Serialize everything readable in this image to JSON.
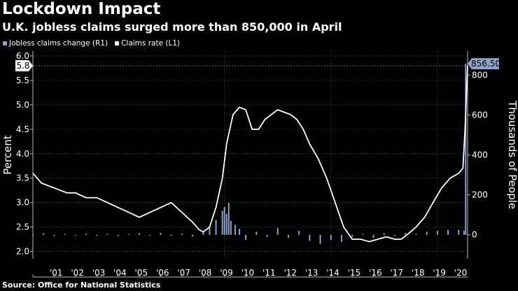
{
  "header": {
    "title": "Lockdown Impact",
    "subtitle": "U.K. jobless claims surged more than 850,000 in April"
  },
  "source": "Source: Office for National Statistics",
  "colors": {
    "rate_line": "#ffffff",
    "change_bars": "#8ea2c9",
    "background": "#000000",
    "grid": "#555555",
    "last_label_bg": "#8ea2c9"
  },
  "chart_data": {
    "type": "line+bar",
    "legend": [
      {
        "name": "Jobless claims change (R1)",
        "color": "#8ea2c9"
      },
      {
        "name": "Claims rate (L1)",
        "color": "#ffffff"
      }
    ],
    "x_range": [
      2000.0,
      2020.42
    ],
    "x_ticks": [
      "'01",
      "'02",
      "'03",
      "'04",
      "'05",
      "'06",
      "'07",
      "'08",
      "'09",
      "'10",
      "'11",
      "'12",
      "'13",
      "'14",
      "'15",
      "'16",
      "'17",
      "'18",
      "'19",
      "'20"
    ],
    "left_axis": {
      "label": "Percent",
      "ylim": [
        1.85,
        6.1
      ],
      "ticks": [
        "2.0",
        "2.5",
        "3.0",
        "3.5",
        "4.0",
        "4.5",
        "5.0",
        "5.5",
        "6.0"
      ],
      "last_value_label": "5.8"
    },
    "right_axis": {
      "label": "Thousands of People",
      "ylim": [
        -120,
        920
      ],
      "ticks": [
        "0",
        "200",
        "400",
        "600",
        "800"
      ],
      "last_value_label": "856.50"
    },
    "series": [
      {
        "name": "Claims rate (L1)",
        "axis": "left",
        "type": "line",
        "x": [
          2000.0,
          2000.2,
          2000.4,
          2001.0,
          2001.6,
          2002.0,
          2002.5,
          2003.0,
          2003.5,
          2004.0,
          2004.5,
          2005.0,
          2005.5,
          2006.0,
          2006.5,
          2007.0,
          2007.5,
          2007.8,
          2008.0,
          2008.3,
          2008.6,
          2008.9,
          2009.1,
          2009.4,
          2009.7,
          2010.0,
          2010.3,
          2010.6,
          2010.9,
          2011.2,
          2011.5,
          2011.8,
          2012.1,
          2012.4,
          2012.7,
          2013.0,
          2013.4,
          2013.8,
          2014.2,
          2014.6,
          2015.0,
          2015.4,
          2015.8,
          2016.2,
          2016.6,
          2017.0,
          2017.3,
          2017.6,
          2018.0,
          2018.4,
          2018.8,
          2019.2,
          2019.6,
          2020.0,
          2020.2,
          2020.3,
          2020.42
        ],
        "values": [
          3.6,
          3.5,
          3.4,
          3.3,
          3.2,
          3.2,
          3.1,
          3.1,
          3.0,
          2.9,
          2.8,
          2.7,
          2.8,
          2.9,
          3.0,
          2.8,
          2.6,
          2.45,
          2.4,
          2.5,
          2.9,
          3.5,
          4.2,
          4.8,
          4.95,
          4.9,
          4.5,
          4.5,
          4.7,
          4.8,
          4.9,
          4.85,
          4.8,
          4.7,
          4.5,
          4.2,
          3.9,
          3.5,
          3.0,
          2.5,
          2.25,
          2.25,
          2.2,
          2.25,
          2.3,
          2.25,
          2.25,
          2.35,
          2.5,
          2.7,
          3.0,
          3.3,
          3.5,
          3.6,
          3.7,
          4.5,
          5.8
        ]
      },
      {
        "name": "Jobless claims change (R1)",
        "axis": "right",
        "type": "bar",
        "x": [
          2000.0,
          2000.5,
          2001.0,
          2001.5,
          2002.0,
          2002.5,
          2003.0,
          2003.5,
          2004.0,
          2004.5,
          2005.0,
          2005.5,
          2006.0,
          2006.5,
          2007.0,
          2007.5,
          2008.0,
          2008.3,
          2008.6,
          2008.9,
          2009.0,
          2009.1,
          2009.2,
          2009.3,
          2009.5,
          2009.7,
          2010.0,
          2010.5,
          2011.0,
          2011.5,
          2012.0,
          2012.5,
          2013.0,
          2013.5,
          2014.0,
          2014.5,
          2015.0,
          2015.5,
          2016.0,
          2016.5,
          2017.0,
          2017.5,
          2018.0,
          2018.5,
          2019.0,
          2019.5,
          2020.0,
          2020.25,
          2020.33
        ],
        "values": [
          -5,
          8,
          -6,
          5,
          -4,
          6,
          -5,
          5,
          -6,
          4,
          8,
          -4,
          10,
          -5,
          6,
          -8,
          15,
          40,
          75,
          120,
          140,
          105,
          160,
          70,
          50,
          30,
          -25,
          15,
          -10,
          35,
          -15,
          20,
          -30,
          -45,
          -25,
          -35,
          -10,
          5,
          -15,
          8,
          -5,
          10,
          5,
          15,
          20,
          25,
          25,
          20,
          856.5
        ]
      }
    ]
  }
}
